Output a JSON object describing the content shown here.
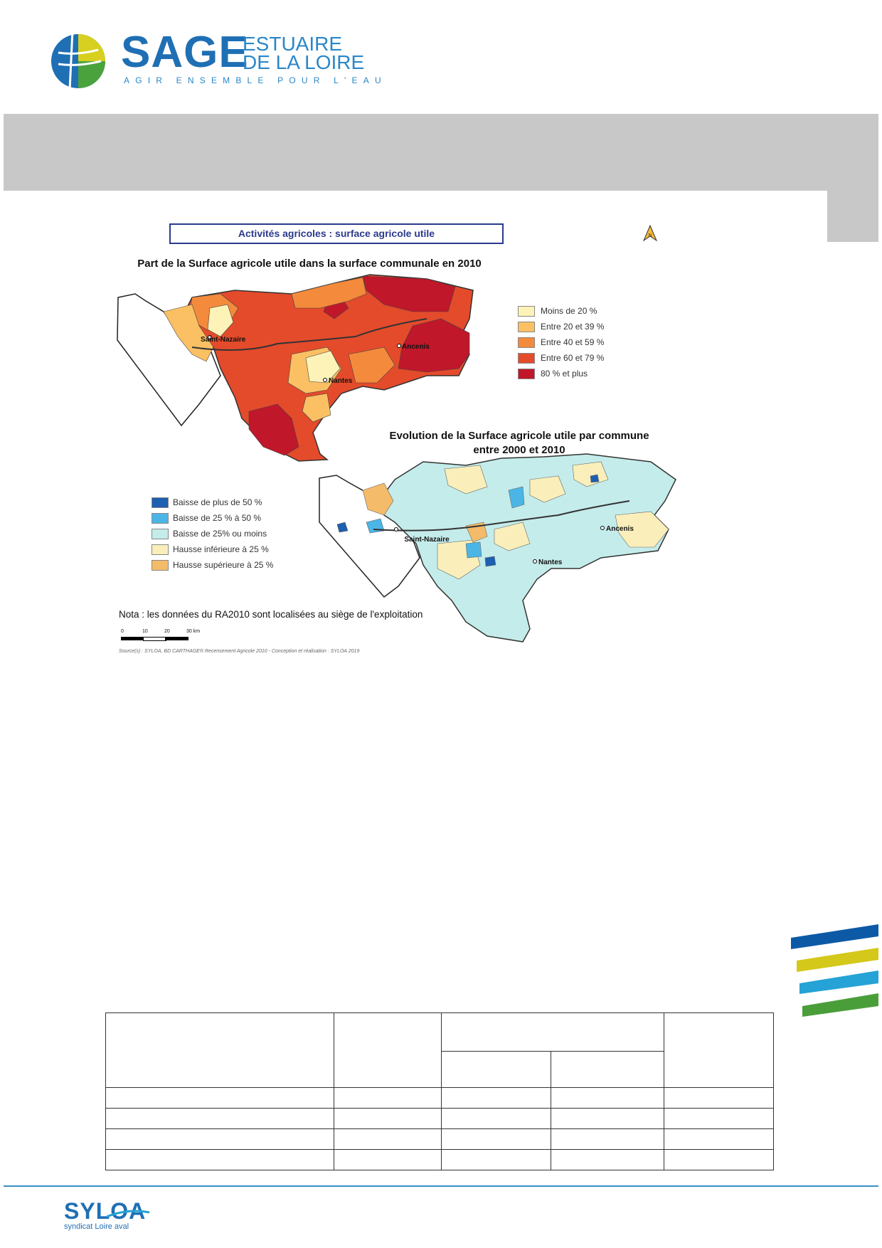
{
  "header": {
    "logo_main": "SAGE",
    "logo_line1": "ESTUAIRE",
    "logo_line2": "DE LA LOIRE",
    "logo_tagline": "AGIR ENSEMBLE POUR L'EAU"
  },
  "figure": {
    "title": "Activités agricoles : surface agricole utile",
    "map1": {
      "title": "Part de la Surface agricole utile dans la surface communale en 2010",
      "legend": [
        {
          "label": "Moins de 20 %",
          "color": "#fdf3b8"
        },
        {
          "label": "Entre 20 et 39 %",
          "color": "#fbc063"
        },
        {
          "label": "Entre 40 et 59 %",
          "color": "#f48a3c"
        },
        {
          "label": "Entre 60 et 79 %",
          "color": "#e44b2b"
        },
        {
          "label": "80 % et plus",
          "color": "#c0172a"
        }
      ],
      "cities": [
        "Saint-Nazaire",
        "Nantes",
        "Ancenis"
      ]
    },
    "map2": {
      "title_line1": "Evolution de la Surface agricole utile par commune",
      "title_line2": "entre 2000 et 2010",
      "legend": [
        {
          "label": "Baisse de plus de 50 %",
          "color": "#1d5fb0"
        },
        {
          "label": "Baisse de 25 % à 50 %",
          "color": "#4bb6e6"
        },
        {
          "label": "Baisse de 25% ou moins",
          "color": "#c4ecea"
        },
        {
          "label": "Hausse inférieure à 25 %",
          "color": "#faefbb"
        },
        {
          "label": "Hausse supérieure à 25 %",
          "color": "#f4bb6a"
        }
      ],
      "cities": [
        "Saint-Nazaire",
        "Nantes",
        "Ancenis"
      ]
    },
    "nota": "Nota : les données du RA2010 sont localisées au siège de l'exploitation",
    "scale": {
      "ticks": [
        "0",
        "10",
        "20",
        "30 km"
      ]
    },
    "source": "Source(s) : SYLOA, BD CARTHAGE® Recensement Agricole 2010 - Conception et réalisation : SYLOA 2019"
  },
  "footer": {
    "brand": "SYLOA",
    "subtitle": "syndicat Loire aval"
  },
  "decor_colors": [
    "#0c5aa6",
    "#d4c81a",
    "#25a2d6",
    "#4a9e3a"
  ]
}
